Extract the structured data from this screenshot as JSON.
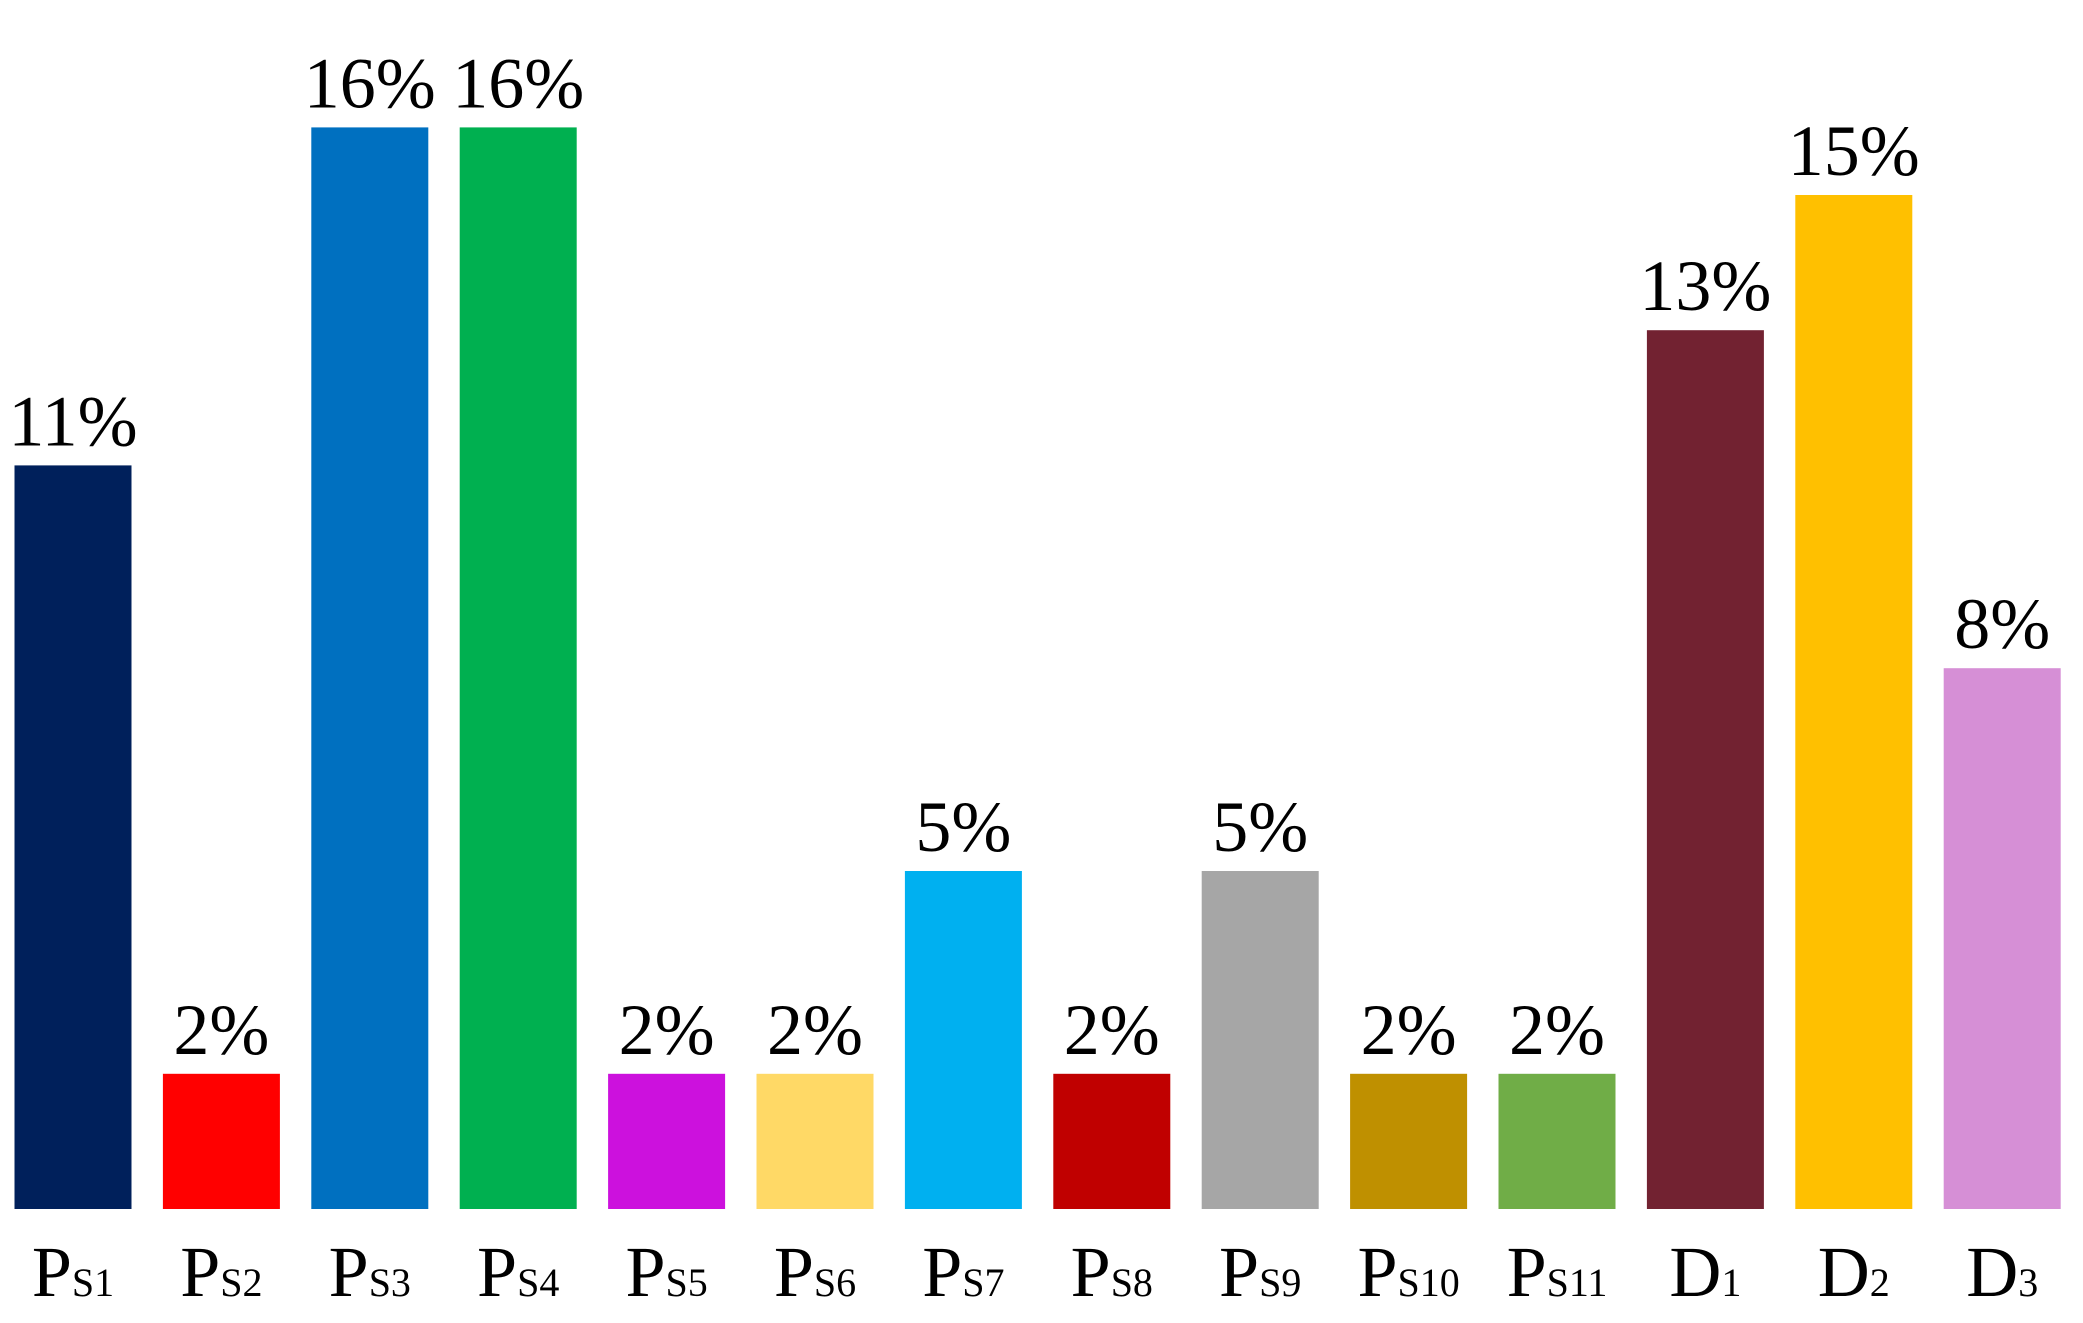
{
  "chart_data": {
    "type": "bar",
    "title": "",
    "xlabel": "",
    "ylabel": "",
    "ylim": [
      0,
      16
    ],
    "grid": false,
    "legend": "none",
    "categories": [
      {
        "main": "P",
        "sub": "S1"
      },
      {
        "main": "P",
        "sub": "S2"
      },
      {
        "main": "P",
        "sub": "S3"
      },
      {
        "main": "P",
        "sub": "S4"
      },
      {
        "main": "P",
        "sub": "S5"
      },
      {
        "main": "P",
        "sub": "S6"
      },
      {
        "main": "P",
        "sub": "S7"
      },
      {
        "main": "P",
        "sub": "S8"
      },
      {
        "main": "P",
        "sub": "S9"
      },
      {
        "main": "P",
        "sub": "S10"
      },
      {
        "main": "P",
        "sub": "S11"
      },
      {
        "main": "D",
        "sub": "1"
      },
      {
        "main": "D",
        "sub": "2"
      },
      {
        "main": "D",
        "sub": "3"
      }
    ],
    "values": [
      11,
      2,
      16,
      16,
      2,
      2,
      5,
      2,
      5,
      2,
      2,
      13,
      15,
      8
    ],
    "value_labels": [
      "11%",
      "2%",
      "16%",
      "16%",
      "2%",
      "2%",
      "5%",
      "2%",
      "5%",
      "2%",
      "2%",
      "13%",
      "15%",
      "8%"
    ],
    "colors": [
      "#00205b",
      "#ff0000",
      "#0070c0",
      "#00b050",
      "#cc11dd",
      "#ffd966",
      "#00b0f0",
      "#c00000",
      "#a6a6a6",
      "#bf9000",
      "#70ad47",
      "#722231",
      "#ffc000",
      "#d68fd6"
    ]
  }
}
